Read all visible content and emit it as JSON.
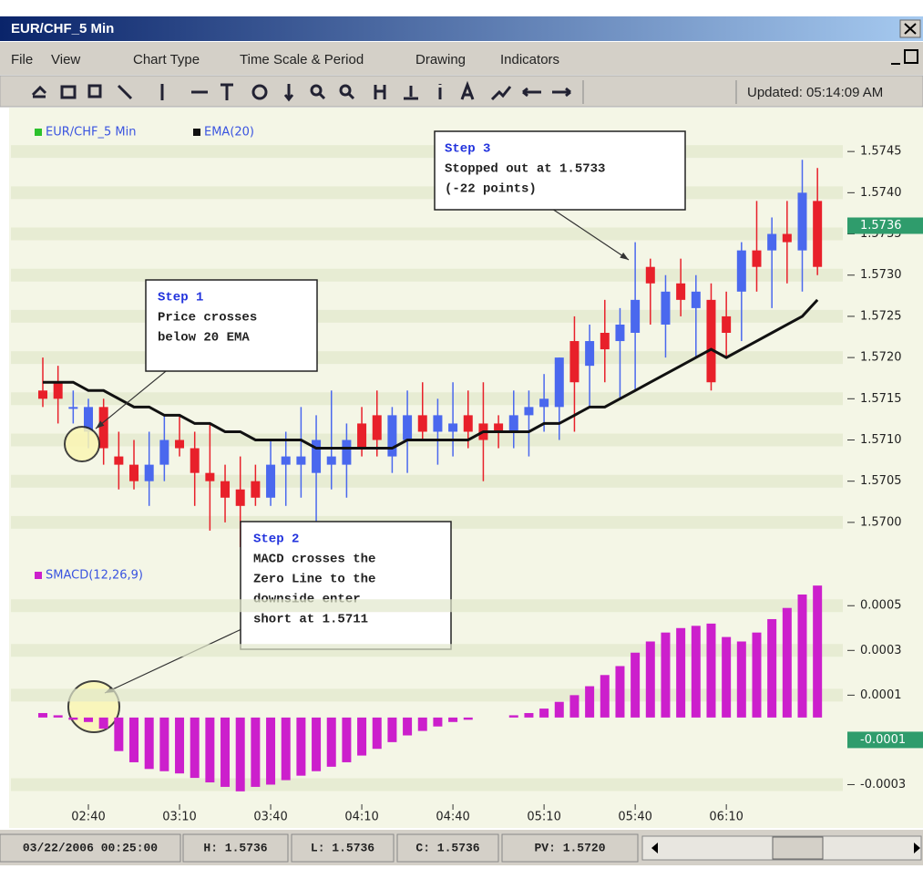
{
  "window": {
    "title": "EUR/CHF_5 Min",
    "menu": [
      "File",
      "View",
      "Chart Type",
      "Time Scale & Period",
      "Drawing",
      "Indicators"
    ],
    "updated": "Updated: 05:14:09 AM",
    "status": [
      "03/22/2006 00:25:00",
      "H: 1.5736",
      "L: 1.5736",
      "C: 1.5736",
      "PV: 1.5720"
    ]
  },
  "chart_data": [
    {
      "type": "candlestick",
      "up_color": "#4a68ee",
      "down_color": "#e8202a",
      "series": [
        {
          "name": "EUR/CHF_5 Min",
          "color": "#2cc12c",
          "open": [
            1.5716,
            1.5717,
            1.5714,
            1.5711,
            1.5714,
            1.5708,
            1.5707,
            1.5705,
            1.5707,
            1.571,
            1.5709,
            1.5706,
            1.5705,
            1.5704,
            1.5705,
            1.5703,
            1.5707,
            1.5707,
            1.5706,
            1.5707,
            1.5707,
            1.5712,
            1.5713,
            1.5708,
            1.571,
            1.5713,
            1.5711,
            1.5711,
            1.5713,
            1.5712,
            1.5712,
            1.5711,
            1.5713,
            1.5714,
            1.5714,
            1.5722,
            1.5719,
            1.5723,
            1.5722,
            1.5723,
            1.5731,
            1.5724,
            1.5729,
            1.5726,
            1.5727,
            1.5725,
            1.5728,
            1.5733,
            1.5733,
            1.5735,
            1.5733,
            1.5739
          ],
          "high": [
            1.572,
            1.5719,
            1.5716,
            1.5715,
            1.5715,
            1.5711,
            1.571,
            1.5711,
            1.5713,
            1.5713,
            1.5711,
            1.5712,
            1.5707,
            1.5708,
            1.5707,
            1.571,
            1.5711,
            1.5714,
            1.5713,
            1.5716,
            1.5712,
            1.5714,
            1.5716,
            1.5714,
            1.5716,
            1.5717,
            1.5715,
            1.5717,
            1.5716,
            1.5717,
            1.5713,
            1.5716,
            1.5716,
            1.5718,
            1.572,
            1.5725,
            1.5724,
            1.5727,
            1.5726,
            1.5734,
            1.5732,
            1.573,
            1.5732,
            1.573,
            1.5729,
            1.5728,
            1.5734,
            1.5739,
            1.5737,
            1.5739,
            1.5744,
            1.5743
          ],
          "low": [
            1.5714,
            1.5712,
            1.5712,
            1.5709,
            1.5707,
            1.5704,
            1.5704,
            1.5702,
            1.5705,
            1.5708,
            1.5702,
            1.5699,
            1.57,
            1.5697,
            1.5702,
            1.5702,
            1.5702,
            1.5703,
            1.57,
            1.5704,
            1.5703,
            1.5708,
            1.5708,
            1.5706,
            1.5706,
            1.571,
            1.5707,
            1.5708,
            1.5709,
            1.5705,
            1.5709,
            1.5709,
            1.5708,
            1.5711,
            1.571,
            1.5711,
            1.5714,
            1.5717,
            1.5715,
            1.5716,
            1.5724,
            1.572,
            1.5725,
            1.572,
            1.5716,
            1.572,
            1.5722,
            1.5728,
            1.5726,
            1.5729,
            1.5728,
            1.573
          ],
          "close": [
            1.5715,
            1.5715,
            1.5714,
            1.5714,
            1.5709,
            1.5707,
            1.5705,
            1.5707,
            1.571,
            1.5709,
            1.5706,
            1.5705,
            1.5703,
            1.5702,
            1.5703,
            1.5707,
            1.5708,
            1.5708,
            1.571,
            1.5708,
            1.571,
            1.5709,
            1.571,
            1.5713,
            1.5713,
            1.5711,
            1.5713,
            1.5712,
            1.5711,
            1.571,
            1.5711,
            1.5713,
            1.5714,
            1.5715,
            1.572,
            1.5717,
            1.5722,
            1.5721,
            1.5724,
            1.5727,
            1.5729,
            1.5728,
            1.5727,
            1.5728,
            1.5717,
            1.5723,
            1.5733,
            1.5731,
            1.5735,
            1.5734,
            1.574,
            1.5731
          ]
        },
        {
          "name": "EMA(20)",
          "color": "#111111",
          "values": [
            1.5717,
            1.5717,
            1.5717,
            1.5716,
            1.5716,
            1.5715,
            1.5714,
            1.5714,
            1.5713,
            1.5713,
            1.5712,
            1.5712,
            1.5711,
            1.5711,
            1.571,
            1.571,
            1.571,
            1.571,
            1.5709,
            1.5709,
            1.5709,
            1.5709,
            1.5709,
            1.5709,
            1.571,
            1.571,
            1.571,
            1.571,
            1.571,
            1.5711,
            1.5711,
            1.5711,
            1.5711,
            1.5712,
            1.5712,
            1.5713,
            1.5714,
            1.5714,
            1.5715,
            1.5716,
            1.5717,
            1.5718,
            1.5719,
            1.572,
            1.5721,
            1.572,
            1.5721,
            1.5722,
            1.5723,
            1.5724,
            1.5725,
            1.5727
          ]
        }
      ],
      "ylim": [
        1.5697,
        1.5749
      ],
      "yticks": [
        {
          "value": 1.57,
          "label": "1.5700"
        },
        1.5705,
        {
          "value": 1.571,
          "label": "1.5710"
        },
        1.5715,
        {
          "value": 1.572,
          "label": "1.5720"
        },
        1.5725,
        {
          "value": 1.573,
          "label": "1.5730"
        },
        1.5735,
        {
          "value": 1.574,
          "label": "1.5740"
        },
        1.5745
      ],
      "marker": {
        "value": 1.5736,
        "label": "1.5736",
        "color": "#2f9c6c"
      },
      "annotations": [
        {
          "lines": [
            "Step 1",
            "Price crosses",
            "below 20 EMA"
          ]
        },
        {
          "lines": [
            "Step 2",
            "MACD crosses the",
            "Zero Line to the",
            "downside enter",
            "short at 1.5711"
          ]
        },
        {
          "lines": [
            "Step 3",
            "Stopped out at 1.5733",
            "(-22 points)"
          ]
        }
      ]
    },
    {
      "type": "bar",
      "categories": [
        null,
        null,
        null,
        "02:40",
        null,
        null,
        null,
        null,
        null,
        "03:10",
        null,
        null,
        null,
        null,
        null,
        "03:40",
        null,
        null,
        null,
        null,
        null,
        "04:10",
        null,
        null,
        null,
        null,
        null,
        "04:40",
        null,
        null,
        null,
        null,
        null,
        "05:10",
        null,
        null,
        null,
        null,
        null,
        "05:40",
        null,
        null,
        null,
        null,
        null,
        "06:10",
        null,
        null,
        null,
        null,
        null,
        null
      ],
      "series": [
        {
          "name": "SMACD(12,26,9)",
          "color": "#cc1fcc",
          "values": [
            2e-05,
            1e-05,
            -1e-05,
            -2e-05,
            -5e-05,
            -0.00015,
            -0.0002,
            -0.00023,
            -0.00024,
            -0.00025,
            -0.00027,
            -0.00029,
            -0.00031,
            -0.00033,
            -0.00031,
            -0.0003,
            -0.00028,
            -0.00026,
            -0.00024,
            -0.00022,
            -0.0002,
            -0.00017,
            -0.00014,
            -0.00011,
            -8e-05,
            -6e-05,
            -4e-05,
            -2e-05,
            -1e-05,
            0,
            0,
            1e-05,
            2e-05,
            4e-05,
            7e-05,
            0.0001,
            0.00014,
            0.00019,
            0.00023,
            0.00029,
            0.00034,
            0.00038,
            0.0004,
            0.00041,
            0.00042,
            0.00036,
            0.00034,
            0.00038,
            0.00044,
            0.00049,
            0.00055,
            0.00059
          ]
        }
      ],
      "ylim": [
        -0.0004,
        0.00066
      ],
      "yticks": [
        -0.0003,
        0.0001,
        0.0003,
        0.0005
      ],
      "marker": {
        "value": -0.0001,
        "color": "#2f9c6c"
      }
    }
  ]
}
